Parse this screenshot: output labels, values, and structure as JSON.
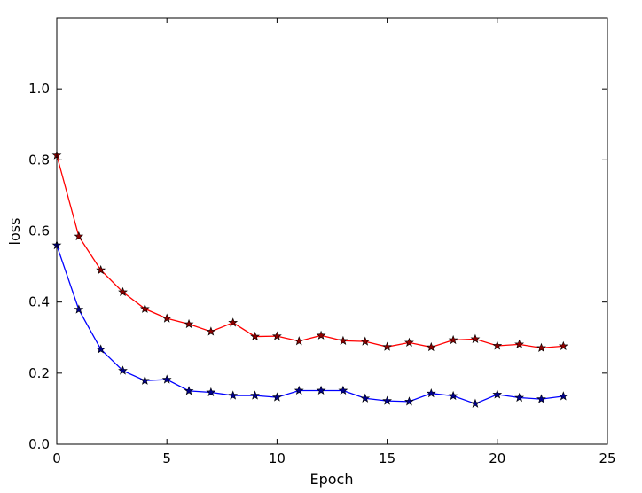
{
  "chart_data": {
    "type": "line",
    "title": "",
    "xlabel": "Epoch",
    "ylabel": "loss",
    "xlim": [
      0,
      25
    ],
    "ylim": [
      0.0,
      1.2
    ],
    "xticks": [
      0,
      5,
      10,
      15,
      20,
      25
    ],
    "xtick_labels": [
      "0",
      "5",
      "10",
      "15",
      "20",
      "25"
    ],
    "yticks": [
      0.0,
      0.2,
      0.4,
      0.6,
      0.8,
      1.0
    ],
    "ytick_labels": [
      "0.0",
      "0.2",
      "0.4",
      "0.6",
      "0.8",
      "1.0"
    ],
    "grid": false,
    "marker": "star",
    "x": [
      0,
      1,
      2,
      3,
      4,
      5,
      6,
      7,
      8,
      9,
      10,
      11,
      12,
      13,
      14,
      15,
      16,
      17,
      18,
      19,
      20,
      21,
      22,
      23
    ],
    "series": [
      {
        "color": "#ff0000",
        "marker_fill": "#8b0000",
        "values": [
          0.813,
          0.585,
          0.49,
          0.428,
          0.381,
          0.354,
          0.338,
          0.317,
          0.342,
          0.303,
          0.304,
          0.29,
          0.306,
          0.291,
          0.289,
          0.274,
          0.286,
          0.273,
          0.293,
          0.296,
          0.277,
          0.281,
          0.271,
          0.276
        ]
      },
      {
        "color": "#0000ff",
        "marker_fill": "#00008b",
        "values": [
          0.56,
          0.379,
          0.267,
          0.207,
          0.179,
          0.182,
          0.15,
          0.146,
          0.137,
          0.137,
          0.132,
          0.151,
          0.151,
          0.151,
          0.129,
          0.122,
          0.12,
          0.143,
          0.136,
          0.114,
          0.14,
          0.131,
          0.127,
          0.135
        ]
      }
    ]
  }
}
